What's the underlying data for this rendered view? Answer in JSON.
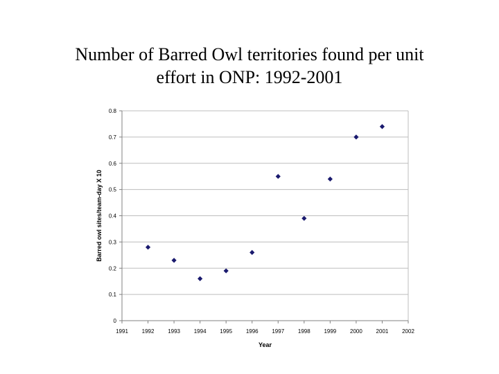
{
  "slide": {
    "title_line1": "Number of Barred Owl territories found per unit",
    "title_line2": "effort in ONP: 1992-2001"
  },
  "chart_data": {
    "type": "scatter",
    "title": "Number of Barred Owl territories found per unit effort in ONP: 1992-2001",
    "xlabel": "Year",
    "ylabel": "Barred owl sites/team-day X 10",
    "xlim": [
      1991,
      2002
    ],
    "ylim": [
      0,
      0.8
    ],
    "xticks": [
      "1991",
      "1992",
      "1993",
      "1994",
      "1995",
      "1996",
      "1997",
      "1998",
      "1999",
      "2000",
      "2001",
      "2002"
    ],
    "yticks": [
      "0",
      "0.1",
      "0.2",
      "0.3",
      "0.4",
      "0.5",
      "0.6",
      "0.7",
      "0.8"
    ],
    "grid": "horizontal",
    "legend": "none",
    "marker_color": "#1a1a6e",
    "series": [
      {
        "x": [
          1992,
          1993,
          1994,
          1995,
          1996,
          1997,
          1998,
          1999,
          2000,
          2001
        ],
        "y": [
          0.28,
          0.23,
          0.16,
          0.19,
          0.26,
          0.55,
          0.39,
          0.54,
          0.7,
          0.74
        ]
      }
    ]
  }
}
